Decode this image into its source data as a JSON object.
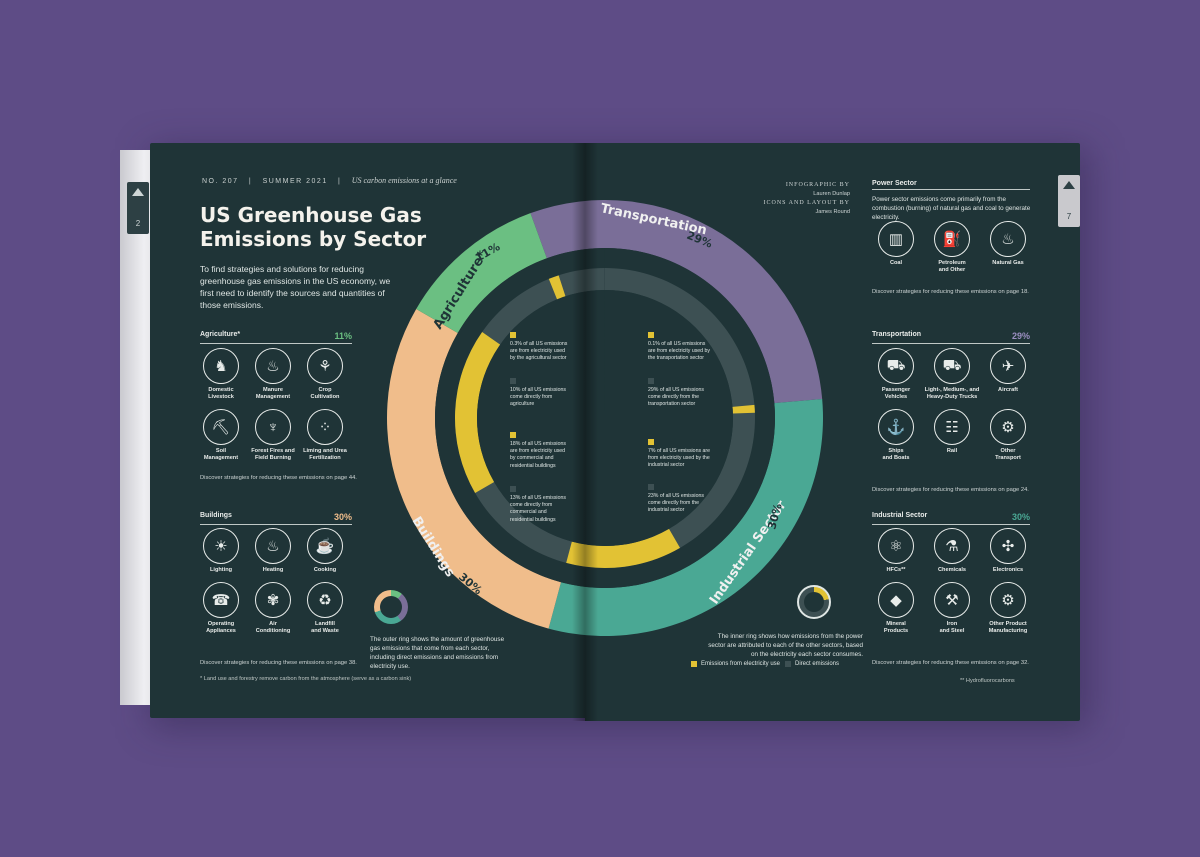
{
  "colors": {
    "background": "#5e4c86",
    "page": "#1f3437",
    "agriculture": "#6bbf82",
    "transportation": "#7a6e98",
    "industrial": "#4aa894",
    "buildings": "#f0bd8b",
    "electricity": "#e2c234",
    "direct": "#3d5053"
  },
  "left_tab": {
    "page_number": "2"
  },
  "right_tab": {
    "page_number": "7"
  },
  "header": {
    "issue": "NO. 207",
    "season": "SUMMER 2021",
    "tagline": "US carbon emissions at a glance"
  },
  "title": "US Greenhouse Gas Emissions by Sector",
  "intro": "To find strategies and solutions for reducing greenhouse gas emissions in the US economy, we first need to identify the sources and quantities of those emissions.",
  "agriculture": {
    "heading": "Agriculture*",
    "percent": "11%",
    "items": [
      {
        "label": "Domestic\nLivestock",
        "icon": "cow-icon",
        "glyph": "♞"
      },
      {
        "label": "Manure\nManagement",
        "icon": "manure-icon",
        "glyph": "♨"
      },
      {
        "label": "Crop\nCultivation",
        "icon": "wheat-icon",
        "glyph": "⚘"
      },
      {
        "label": "Soil\nManagement",
        "icon": "shovel-icon",
        "glyph": "⛏"
      },
      {
        "label": "Forest Fires and\nField Burning",
        "icon": "fire-icon",
        "glyph": "♆"
      },
      {
        "label": "Liming and Urea\nFertilization",
        "icon": "fertilizer-icon",
        "glyph": "⁘"
      }
    ],
    "discover": "Discover strategies for reducing these emissions on page 44."
  },
  "buildings": {
    "heading": "Buildings",
    "percent": "30%",
    "items": [
      {
        "label": "Lighting",
        "icon": "lamp-icon",
        "glyph": "☀"
      },
      {
        "label": "Heating",
        "icon": "heater-icon",
        "glyph": "♨"
      },
      {
        "label": "Cooking",
        "icon": "burger-icon",
        "glyph": "☕"
      },
      {
        "label": "Operating\nAppliances",
        "icon": "phone-icon",
        "glyph": "☎"
      },
      {
        "label": "Air\nConditioning",
        "icon": "fan-icon",
        "glyph": "✾"
      },
      {
        "label": "Landfill\nand Waste",
        "icon": "trash-icon",
        "glyph": "♻"
      }
    ],
    "discover": "Discover strategies for reducing these emissions on page 38."
  },
  "outer_ring_note": "The outer ring shows the amount of greenhouse gas emissions that come from each sector, including direct emissions and emissions from electricity use.",
  "footnote_left": "* Land use and forestry remove carbon from the atmosphere (serve as a carbon sink)",
  "credits": {
    "infographic_label": "INFOGRAPHIC BY",
    "infographic_name": "Lauren Dunlap",
    "icons_label": "ICONS AND LAYOUT BY",
    "icons_name": "James Round"
  },
  "power": {
    "heading": "Power Sector",
    "description": "Power sector emissions come primarily from the combustion (burning) of natural gas and coal to generate electricity.",
    "items": [
      {
        "label": "Coal",
        "icon": "factory-icon",
        "glyph": "▥"
      },
      {
        "label": "Petroleum\nand Other",
        "icon": "oil-rig-icon",
        "glyph": "⛽"
      },
      {
        "label": "Natural Gas",
        "icon": "flame-icon",
        "glyph": "♨"
      }
    ],
    "discover": "Discover strategies for reducing these emissions on page 18."
  },
  "transportation": {
    "heading": "Transportation",
    "percent": "29%",
    "items": [
      {
        "label": "Passenger\nVehicles",
        "icon": "car-icon",
        "glyph": "⛟"
      },
      {
        "label": "Light-, Medium-, and\nHeavy-Duty Trucks",
        "icon": "truck-icon",
        "glyph": "⛟"
      },
      {
        "label": "Aircraft",
        "icon": "airplane-icon",
        "glyph": "✈"
      },
      {
        "label": "Ships\nand Boats",
        "icon": "ship-icon",
        "glyph": "⚓"
      },
      {
        "label": "Rail",
        "icon": "train-icon",
        "glyph": "☷"
      },
      {
        "label": "Other\nTransport",
        "icon": "motorcycle-icon",
        "glyph": "⚙"
      }
    ],
    "discover": "Discover strategies for reducing these emissions on page 24."
  },
  "industrial": {
    "heading": "Industrial Sector",
    "percent": "30%",
    "items": [
      {
        "label": "HFCs**",
        "icon": "molecule-icon",
        "glyph": "⚛"
      },
      {
        "label": "Chemicals",
        "icon": "flask-icon",
        "glyph": "⚗"
      },
      {
        "label": "Electronics",
        "icon": "gamepad-icon",
        "glyph": "✣"
      },
      {
        "label": "Mineral\nProducts",
        "icon": "diamond-icon",
        "glyph": "◆"
      },
      {
        "label": "Iron\nand Steel",
        "icon": "crane-icon",
        "glyph": "⚒"
      },
      {
        "label": "Other Product\nManufacturing",
        "icon": "gear-bulb-icon",
        "glyph": "⚙"
      }
    ],
    "discover": "Discover strategies for reducing these emissions on page 32."
  },
  "footnote_right": "** Hydrofluorocarbons",
  "inner_ring_note": "The inner ring shows how emissions from the power sector are attributed to each of the other sectors, based on the electricity each sector consumes.",
  "legend": {
    "electricity": "Emissions from electricity use",
    "direct": "Direct emissions"
  },
  "donut_labels": {
    "agriculture": {
      "name": "Agriculture*",
      "pct": "11%"
    },
    "transportation": {
      "name": "Transportation",
      "pct": "29%"
    },
    "industrial": {
      "name": "Industrial Sector",
      "pct": "30%"
    },
    "buildings": {
      "name": "Buildings",
      "pct": "30%"
    }
  },
  "stats": {
    "agri_elec": "0.3% of all US emissions are from electricity used by the agricultural sector",
    "agri_direct": "10% of all US emissions come directly from agriculture",
    "bldg_elec": "18% of all US emissions are from electricity used by commercial and residential buildings",
    "bldg_direct": "13% of all US emissions come directly from commercial and residential buildings",
    "trans_elec": "0.1% of all US emissions are from electricity used by the transportation sector",
    "trans_direct": "29% of all US emissions come directly from the transportation sector",
    "ind_elec": "7% of all US emissions are from electricity used by the industrial sector",
    "ind_direct": "23% of all US emissions come directly from the industrial sector"
  }
}
